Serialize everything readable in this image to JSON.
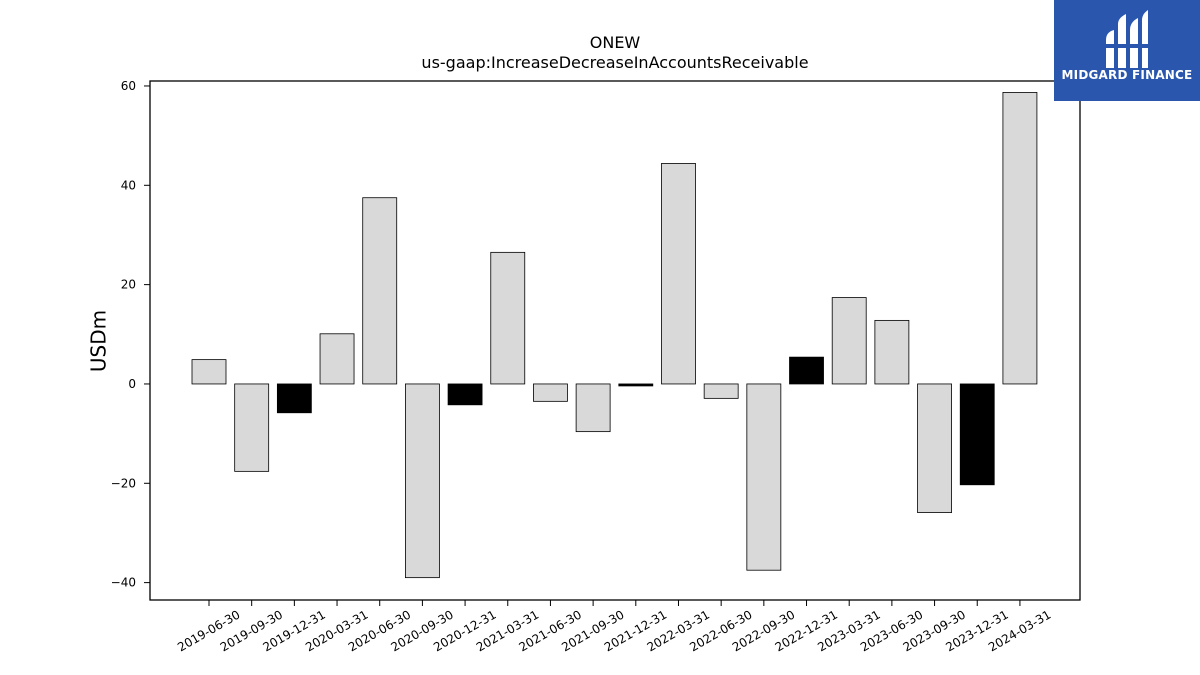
{
  "chart_data": {
    "type": "bar",
    "title": "ONEW",
    "subtitle": "us-gaap:IncreaseDecreaseInAccountsReceivable",
    "ylabel": "USDm",
    "xlabel": "",
    "ylim": [
      -43.5,
      61
    ],
    "yticks": [
      -40,
      -20,
      0,
      20,
      40,
      60
    ],
    "ytick_labels": [
      "−40",
      "−20",
      "0",
      "20",
      "40",
      "60"
    ],
    "categories": [
      "2019-06-30",
      "2019-09-30",
      "2019-12-31",
      "2020-03-31",
      "2020-06-30",
      "2020-09-30",
      "2020-12-31",
      "2021-03-31",
      "2021-06-30",
      "2021-09-30",
      "2021-12-31",
      "2022-03-31",
      "2022-06-30",
      "2022-09-30",
      "2022-12-31",
      "2023-03-31",
      "2023-06-30",
      "2023-09-30",
      "2023-12-31",
      "2024-03-31"
    ],
    "values": [
      4.9,
      -17.6,
      -5.8,
      10.1,
      37.5,
      -39.0,
      -4.2,
      26.5,
      -3.5,
      -9.6,
      -0.4,
      44.4,
      -2.9,
      -37.5,
      5.4,
      17.4,
      12.8,
      -25.9,
      -20.3,
      58.7
    ],
    "highlight": [
      false,
      false,
      true,
      false,
      false,
      false,
      true,
      false,
      false,
      false,
      true,
      false,
      false,
      false,
      true,
      false,
      false,
      false,
      true,
      false
    ],
    "colors": {
      "bar": "#d9d9d9",
      "highlight": "#000000",
      "edge": "#000000"
    },
    "grid": false,
    "legend": "none"
  },
  "logo": {
    "text": "MIDGARD FINANCE",
    "color": "#2a57ad"
  }
}
